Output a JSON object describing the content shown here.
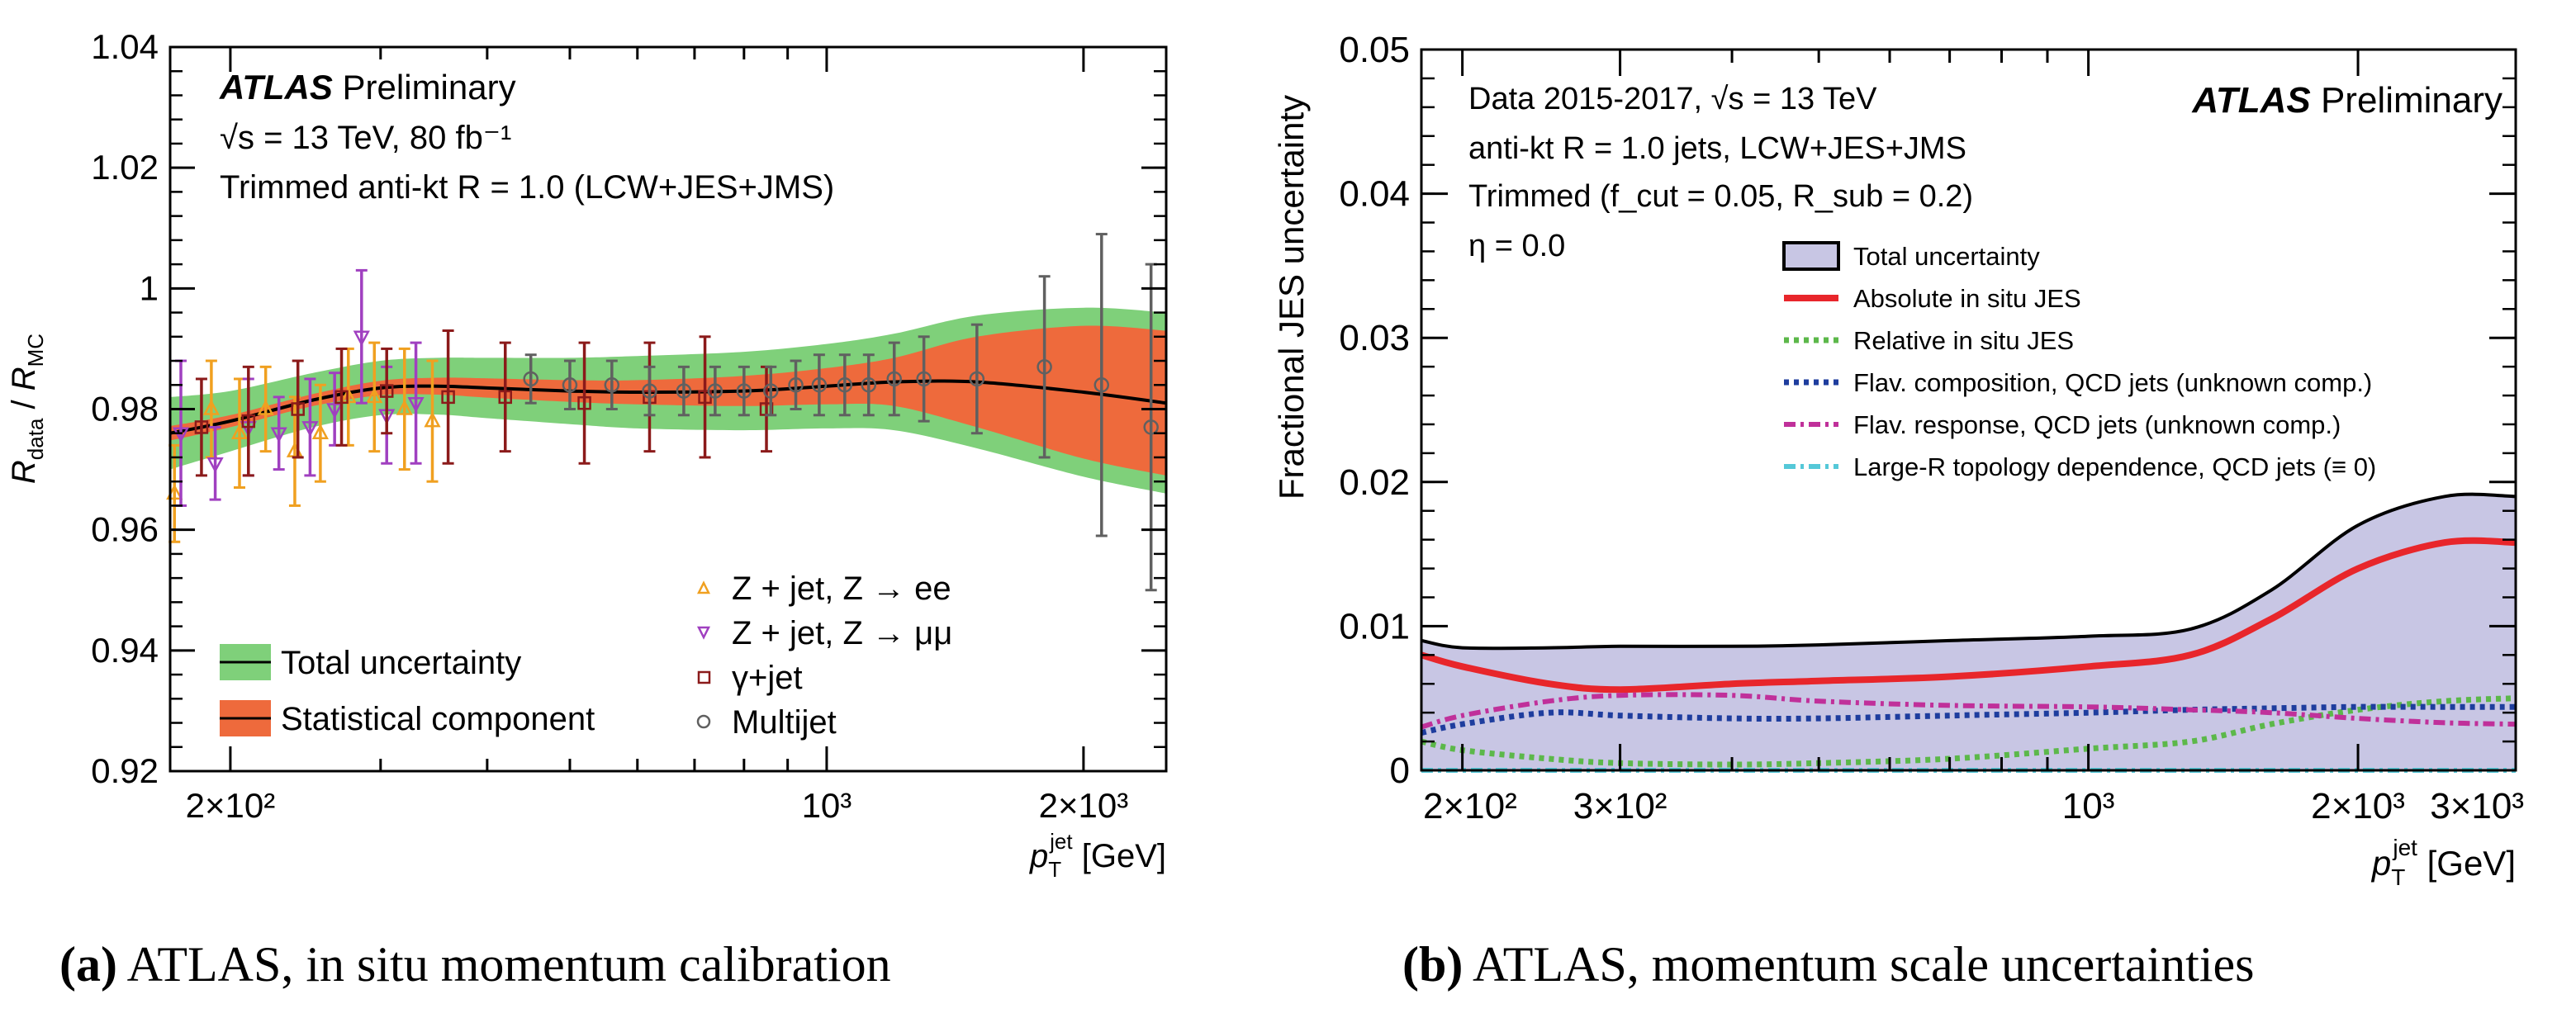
{
  "chart_data": [
    {
      "type": "scatter",
      "panel_label": "(a)",
      "caption": "ATLAS, in situ momentum calibration",
      "ylabel": "R_data / R_MC",
      "xlabel": "p_T^jet [GeV]",
      "x_scale": "log",
      "xlim": [
        170,
        2500
      ],
      "ylim": [
        0.92,
        1.04
      ],
      "y_ticks": [
        "0.92",
        "0.94",
        "0.96",
        "0.98",
        "1",
        "1.02",
        "1.04"
      ],
      "x_ticks": [
        {
          "value": 200,
          "label": "2×10²"
        },
        {
          "value": 1000,
          "label": "10³"
        },
        {
          "value": 2000,
          "label": "2×10³"
        }
      ],
      "annotation": {
        "experiment": "ATLAS",
        "status": "Preliminary",
        "energy": "√s = 13 TeV, 80 fb⁻¹",
        "jets": "Trimmed anti-kt R = 1.0 (LCW+JES+JMS)"
      },
      "band_legend": [
        {
          "label": "Total uncertainty",
          "color": "#7fd07a"
        },
        {
          "label": "Statistical component",
          "color": "#ee6a3c"
        }
      ],
      "marker_legend": [
        {
          "label": "Z + jet, Z → ee",
          "color": "#f0a020",
          "marker": "triangle-up"
        },
        {
          "label": "Z + jet, Z → μμ",
          "color": "#a040c0",
          "marker": "triangle-down"
        },
        {
          "label": "γ+jet",
          "color": "#8b1a1a",
          "marker": "square"
        },
        {
          "label": "Multijet",
          "color": "#606060",
          "marker": "circle"
        }
      ],
      "calibration_curve": {
        "x": [
          170,
          200,
          250,
          300,
          350,
          400,
          500,
          600,
          800,
          1000,
          1200,
          1500,
          2000,
          2500
        ],
        "y": [
          0.976,
          0.978,
          0.9815,
          0.9835,
          0.9838,
          0.9835,
          0.983,
          0.9828,
          0.983,
          0.9838,
          0.9845,
          0.9845,
          0.9828,
          0.981
        ],
        "total_halfwidth": [
          0.006,
          0.005,
          0.0045,
          0.0045,
          0.0047,
          0.005,
          0.0055,
          0.006,
          0.0065,
          0.007,
          0.008,
          0.011,
          0.014,
          0.015
        ],
        "stat_halfwidth": [
          0.0012,
          0.001,
          0.001,
          0.0012,
          0.0014,
          0.0016,
          0.0018,
          0.002,
          0.0025,
          0.003,
          0.004,
          0.0075,
          0.011,
          0.012
        ]
      },
      "series": [
        {
          "name": "Z + jet, Z → ee",
          "x": [
            172,
            190,
            205,
            220,
            238,
            255,
            275,
            295,
            320,
            345
          ],
          "y": [
            0.966,
            0.98,
            0.976,
            0.98,
            0.973,
            0.976,
            0.982,
            0.982,
            0.98,
            0.978
          ],
          "err": [
            0.008,
            0.008,
            0.009,
            0.007,
            0.009,
            0.008,
            0.008,
            0.009,
            0.01,
            0.01
          ]
        },
        {
          "name": "Z + jet, Z → μμ",
          "x": [
            175,
            192,
            210,
            228,
            248,
            265,
            285,
            305,
            330
          ],
          "y": [
            0.976,
            0.971,
            0.977,
            0.976,
            0.977,
            0.98,
            0.992,
            0.979,
            0.981
          ],
          "err": [
            0.012,
            0.006,
            0.008,
            0.006,
            0.008,
            0.006,
            0.011,
            0.008,
            0.01
          ]
        },
        {
          "name": "γ+jet",
          "x": [
            185,
            210,
            240,
            270,
            305,
            360,
            420,
            520,
            620,
            720,
            850
          ],
          "y": [
            0.977,
            0.978,
            0.98,
            0.982,
            0.983,
            0.982,
            0.982,
            0.981,
            0.982,
            0.982,
            0.98
          ],
          "err": [
            0.008,
            0.009,
            0.008,
            0.008,
            0.007,
            0.011,
            0.009,
            0.01,
            0.009,
            0.01,
            0.007
          ]
        },
        {
          "name": "Multijet",
          "x": [
            450,
            500,
            560,
            620,
            680,
            740,
            800,
            860,
            920,
            980,
            1050,
            1120,
            1200,
            1300,
            1500,
            1800,
            2100,
            2400
          ],
          "y": [
            0.985,
            0.984,
            0.984,
            0.983,
            0.983,
            0.983,
            0.983,
            0.983,
            0.984,
            0.984,
            0.984,
            0.984,
            0.985,
            0.985,
            0.985,
            0.987,
            0.984,
            0.977
          ],
          "err": [
            0.004,
            0.004,
            0.004,
            0.004,
            0.004,
            0.004,
            0.004,
            0.004,
            0.004,
            0.005,
            0.005,
            0.005,
            0.006,
            0.007,
            0.009,
            0.015,
            0.025,
            0.027
          ]
        }
      ]
    },
    {
      "type": "line",
      "panel_label": "(b)",
      "caption": "ATLAS, momentum scale uncertainties",
      "ylabel": "Fractional JES uncertainty",
      "xlabel": "p_T^jet [GeV]",
      "x_scale": "log",
      "xlim": [
        180,
        3000
      ],
      "ylim": [
        0,
        0.05
      ],
      "y_ticks": [
        "0",
        "0.01",
        "0.02",
        "0.03",
        "0.04",
        "0.05"
      ],
      "x_ticks": [
        {
          "value": 200,
          "label": "2×10²"
        },
        {
          "value": 300,
          "label": "3×10²"
        },
        {
          "value": 1000,
          "label": "10³"
        },
        {
          "value": 2000,
          "label": "2×10³"
        },
        {
          "value": 3000,
          "label": "3×10³"
        }
      ],
      "annotation": {
        "data_line": "Data 2015-2017, √s = 13 TeV",
        "experiment": "ATLAS",
        "status": "Preliminary",
        "jets": "anti-kt R = 1.0 jets, LCW+JES+JMS",
        "trimming": "Trimmed (f_cut = 0.05, R_sub = 0.2)",
        "eta": "η = 0.0"
      },
      "x": [
        180,
        200,
        250,
        300,
        400,
        500,
        700,
        1000,
        1300,
        1600,
        2000,
        2500,
        3000
      ],
      "series": [
        {
          "name": "Total uncertainty",
          "color": "#c8c6e4",
          "style": "band",
          "values": [
            0.009,
            0.0085,
            0.0085,
            0.0086,
            0.0086,
            0.0087,
            0.009,
            0.0093,
            0.0098,
            0.0125,
            0.017,
            0.019,
            0.019
          ]
        },
        {
          "name": "Absolute in situ JES",
          "color": "#e8262b",
          "style": "solid",
          "values": [
            0.008,
            0.0072,
            0.006,
            0.0056,
            0.006,
            0.0062,
            0.0065,
            0.0072,
            0.008,
            0.0105,
            0.014,
            0.0158,
            0.0158
          ]
        },
        {
          "name": "Relative in situ JES",
          "color": "#5cb84a",
          "style": "dotted",
          "values": [
            0.002,
            0.0014,
            0.0008,
            0.0005,
            0.0004,
            0.0005,
            0.0008,
            0.0015,
            0.002,
            0.0032,
            0.0042,
            0.0048,
            0.005
          ]
        },
        {
          "name": "Flav. composition, QCD jets (unknown comp.)",
          "color": "#1e3d9e",
          "style": "dotted",
          "values": [
            0.0026,
            0.0032,
            0.004,
            0.0038,
            0.0036,
            0.0036,
            0.0038,
            0.004,
            0.0042,
            0.0043,
            0.0044,
            0.0044,
            0.0044
          ]
        },
        {
          "name": "Flav. response, QCD jets (unknown comp.)",
          "color": "#c0309a",
          "style": "dashdot",
          "values": [
            0.003,
            0.0038,
            0.0048,
            0.0052,
            0.0052,
            0.0048,
            0.0045,
            0.0044,
            0.0042,
            0.004,
            0.0036,
            0.0033,
            0.0032
          ]
        },
        {
          "name": "Large-R topology dependence, QCD jets (≡ 0)",
          "color": "#55c8d8",
          "style": "dashdot",
          "values": [
            0,
            0,
            0,
            0,
            0,
            0,
            0,
            0,
            0,
            0,
            0,
            0,
            0
          ]
        }
      ]
    }
  ]
}
